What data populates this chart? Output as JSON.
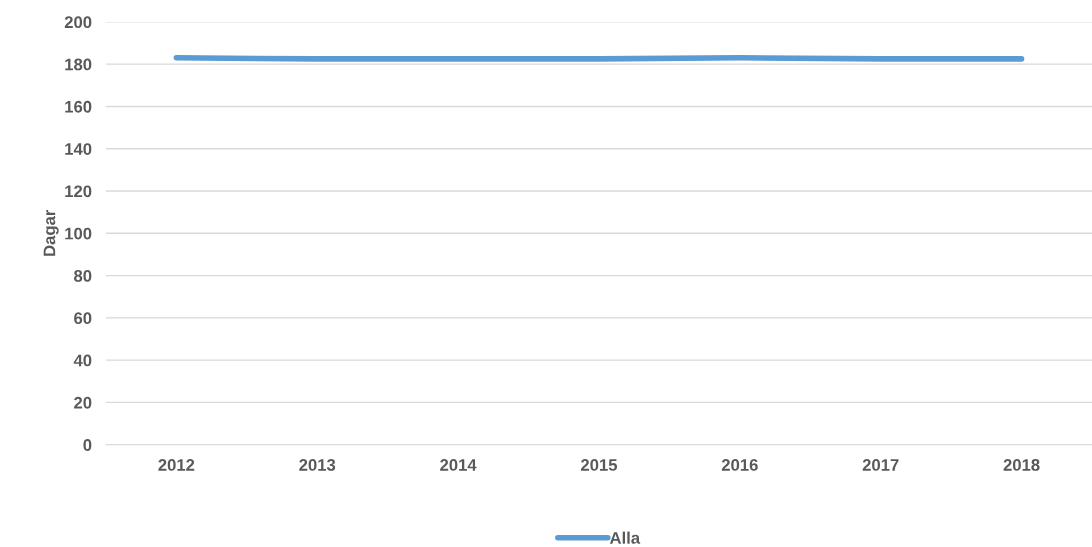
{
  "chart_data": {
    "type": "line",
    "ylabel": "Dagar",
    "categories": [
      "2012",
      "2013",
      "2014",
      "2015",
      "2016",
      "2017",
      "2018"
    ],
    "series": [
      {
        "name": "Alla",
        "color": "#5b9bd5",
        "values": [
          183,
          182.5,
          182.5,
          182.5,
          183,
          182.5,
          182.5
        ]
      }
    ],
    "ylim": [
      0,
      200
    ],
    "yticks": [
      0,
      20,
      40,
      60,
      80,
      100,
      120,
      140,
      160,
      180,
      200
    ],
    "grid": "y",
    "legend": "bottom",
    "marker": "none",
    "line_style": "solid"
  }
}
